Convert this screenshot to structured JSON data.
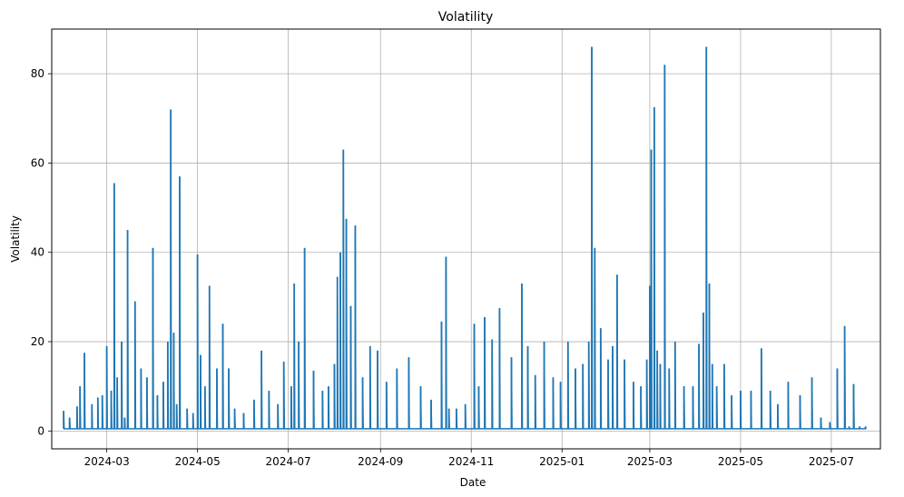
{
  "chart_data": {
    "type": "line",
    "title": "Volatility",
    "xlabel": "Date",
    "ylabel": "Volatility",
    "xlim": [
      "2024-01-24",
      "2025-08-03"
    ],
    "ylim": [
      -4,
      90
    ],
    "x_ticks": [
      "2024-03",
      "2024-05",
      "2024-07",
      "2024-09",
      "2024-11",
      "2025-01",
      "2025-03",
      "2025-05",
      "2025-07"
    ],
    "y_ticks": [
      0,
      20,
      40,
      60,
      80
    ],
    "grid": true,
    "line_color": "#1f77b4",
    "series": [
      {
        "x": [
          "2024-02-01",
          "2024-02-05",
          "2024-02-10",
          "2024-02-12",
          "2024-02-15",
          "2024-02-20",
          "2024-02-24",
          "2024-02-27",
          "2024-03-01",
          "2024-03-04",
          "2024-03-06",
          "2024-03-08",
          "2024-03-11",
          "2024-03-13",
          "2024-03-15",
          "2024-03-20",
          "2024-03-24",
          "2024-03-28",
          "2024-04-01",
          "2024-04-04",
          "2024-04-08",
          "2024-04-11",
          "2024-04-13",
          "2024-04-15",
          "2024-04-17",
          "2024-04-19",
          "2024-04-24",
          "2024-04-28",
          "2024-05-01",
          "2024-05-03",
          "2024-05-06",
          "2024-05-09",
          "2024-05-14",
          "2024-05-18",
          "2024-05-22",
          "2024-05-26",
          "2024-06-01",
          "2024-06-08",
          "2024-06-13",
          "2024-06-18",
          "2024-06-24",
          "2024-06-28",
          "2024-07-03",
          "2024-07-05",
          "2024-07-08",
          "2024-07-12",
          "2024-07-18",
          "2024-07-24",
          "2024-07-28",
          "2024-08-01",
          "2024-08-03",
          "2024-08-05",
          "2024-08-07",
          "2024-08-09",
          "2024-08-12",
          "2024-08-15",
          "2024-08-20",
          "2024-08-25",
          "2024-08-30",
          "2024-09-05",
          "2024-09-12",
          "2024-09-20",
          "2024-09-28",
          "2024-10-05",
          "2024-10-12",
          "2024-10-15",
          "2024-10-17",
          "2024-10-22",
          "2024-10-28",
          "2024-11-03",
          "2024-11-06",
          "2024-11-10",
          "2024-11-15",
          "2024-11-20",
          "2024-11-28",
          "2024-12-05",
          "2024-12-09",
          "2024-12-14",
          "2024-12-20",
          "2024-12-26",
          "2024-12-31",
          "2025-01-05",
          "2025-01-10",
          "2025-01-15",
          "2025-01-19",
          "2025-01-21",
          "2025-01-23",
          "2025-01-27",
          "2025-02-01",
          "2025-02-04",
          "2025-02-07",
          "2025-02-12",
          "2025-02-18",
          "2025-02-23",
          "2025-02-27",
          "2025-03-01",
          "2025-03-02",
          "2025-03-04",
          "2025-03-06",
          "2025-03-08",
          "2025-03-11",
          "2025-03-14",
          "2025-03-18",
          "2025-03-24",
          "2025-03-30",
          "2025-04-03",
          "2025-04-06",
          "2025-04-08",
          "2025-04-10",
          "2025-04-12",
          "2025-04-15",
          "2025-04-20",
          "2025-04-25",
          "2025-05-01",
          "2025-05-08",
          "2025-05-15",
          "2025-05-21",
          "2025-05-26",
          "2025-06-02",
          "2025-06-10",
          "2025-06-18",
          "2025-06-24",
          "2025-06-30",
          "2025-07-05",
          "2025-07-10",
          "2025-07-13",
          "2025-07-16",
          "2025-07-20",
          "2025-07-24"
        ],
        "y": [
          4.5,
          3,
          5.5,
          10,
          17.5,
          6,
          7.5,
          8,
          19,
          9,
          55.5,
          12,
          20,
          3,
          45,
          29,
          14,
          12,
          41,
          8,
          11,
          20,
          72,
          22,
          6,
          57,
          5,
          4,
          39.5,
          17,
          10,
          32.5,
          14,
          24,
          14,
          5,
          4,
          7,
          18,
          9,
          6,
          15.5,
          10,
          33,
          20,
          41,
          13.5,
          9,
          10,
          15,
          34.5,
          40,
          63,
          47.5,
          28,
          46,
          12,
          19,
          18,
          11,
          14,
          16.5,
          10,
          7,
          24.5,
          39,
          5,
          5,
          6,
          24,
          10,
          25.5,
          20.5,
          27.5,
          16.5,
          33,
          19,
          12.5,
          20,
          12,
          11,
          20,
          14,
          15,
          20,
          86,
          41,
          23,
          16,
          19,
          35,
          16,
          11,
          10,
          16,
          32.5,
          63,
          72.5,
          18,
          15,
          82,
          14,
          20,
          10,
          10,
          19.5,
          26.5,
          86,
          33,
          15,
          10,
          15,
          8,
          9,
          9,
          18.5,
          9,
          6,
          11,
          8,
          12,
          3,
          2,
          14,
          23.5,
          1,
          10.5,
          1,
          1
        ]
      }
    ]
  }
}
